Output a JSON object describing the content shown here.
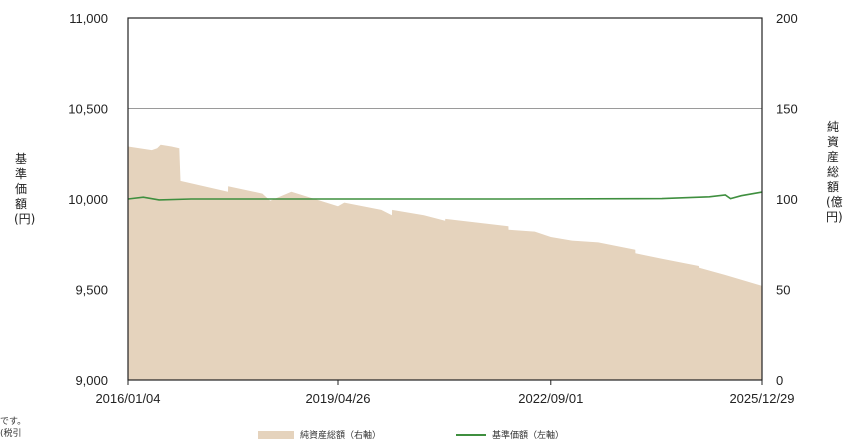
{
  "chart_data": {
    "type": "area+line",
    "left_axis": {
      "label_chars": [
        "基",
        "準",
        "価",
        "額",
        "(円)"
      ],
      "range": [
        9000,
        11000
      ],
      "ticks": [
        {
          "value": 9000,
          "label": "9,000"
        },
        {
          "value": 9500,
          "label": "9,500"
        },
        {
          "value": 10000,
          "label": "10,000"
        },
        {
          "value": 10500,
          "label": "10,500"
        },
        {
          "value": 11000,
          "label": "11,000"
        }
      ]
    },
    "right_axis": {
      "label_chars": [
        "純",
        "資",
        "産",
        "総",
        "額",
        "(億",
        "円)"
      ],
      "range": [
        0,
        200
      ],
      "ticks": [
        {
          "value": 0,
          "label": "0"
        },
        {
          "value": 50,
          "label": "50"
        },
        {
          "value": 100,
          "label": "100"
        },
        {
          "value": 150,
          "label": "150"
        },
        {
          "value": 200,
          "label": "200"
        }
      ]
    },
    "x_axis": {
      "range": [
        "2016-01-04",
        "2025-12-29"
      ],
      "ticks": [
        {
          "value": "2016-01-04",
          "label": "2016/01/04"
        },
        {
          "value": "2019-04-26",
          "label": "2019/04/26"
        },
        {
          "value": "2022-09-01",
          "label": "2022/09/01"
        },
        {
          "value": "2025-12-29",
          "label": "2025/12/29"
        }
      ]
    },
    "gridline_values": [
      10500
    ],
    "series": [
      {
        "name": "純資産総額（右軸）",
        "type": "area",
        "axis": "right",
        "color": "#e5d3bd",
        "points": [
          [
            "2016-01-04",
            129
          ],
          [
            "2016-05-20",
            127
          ],
          [
            "2016-06-20",
            128
          ],
          [
            "2016-07-10",
            130
          ],
          [
            "2016-09-10",
            129
          ],
          [
            "2016-10-25",
            128
          ],
          [
            "2016-11-01",
            110
          ],
          [
            "2017-08-01",
            104
          ],
          [
            "2017-08-02",
            107
          ],
          [
            "2018-02-15",
            103
          ],
          [
            "2018-04-01",
            99
          ],
          [
            "2018-08-01",
            104
          ],
          [
            "2019-04-26",
            96
          ],
          [
            "2019-06-01",
            98
          ],
          [
            "2019-12-31",
            94
          ],
          [
            "2020-03-01",
            91
          ],
          [
            "2020-03-02",
            94
          ],
          [
            "2020-09-01",
            91
          ],
          [
            "2021-01-01",
            88
          ],
          [
            "2021-01-02",
            89
          ],
          [
            "2021-12-31",
            85
          ],
          [
            "2022-01-01",
            83
          ],
          [
            "2022-06-01",
            82
          ],
          [
            "2022-09-01",
            79
          ],
          [
            "2023-01-01",
            77
          ],
          [
            "2023-06-01",
            76
          ],
          [
            "2023-12-31",
            72
          ],
          [
            "2024-01-01",
            70
          ],
          [
            "2024-06-01",
            67
          ],
          [
            "2024-12-31",
            63
          ],
          [
            "2025-01-01",
            62
          ],
          [
            "2025-06-01",
            58
          ],
          [
            "2025-12-29",
            52
          ]
        ]
      },
      {
        "name": "基準価額（左軸）",
        "type": "line",
        "axis": "left",
        "color": "#3f8f3f",
        "points": [
          [
            "2016-01-04",
            10000
          ],
          [
            "2016-04-01",
            10010
          ],
          [
            "2016-07-01",
            9995
          ],
          [
            "2017-01-01",
            10000
          ],
          [
            "2019-01-01",
            10000
          ],
          [
            "2022-01-01",
            10000
          ],
          [
            "2024-06-01",
            10002
          ],
          [
            "2025-03-01",
            10012
          ],
          [
            "2025-06-01",
            10022
          ],
          [
            "2025-07-01",
            10002
          ],
          [
            "2025-09-01",
            10018
          ],
          [
            "2025-12-29",
            10038
          ]
        ]
      }
    ]
  },
  "legend": {
    "area_label": "純資産総額（右軸）",
    "line_label": "基準価額（左軸）"
  },
  "corner_note": [
    "です。",
    "(税引"
  ]
}
